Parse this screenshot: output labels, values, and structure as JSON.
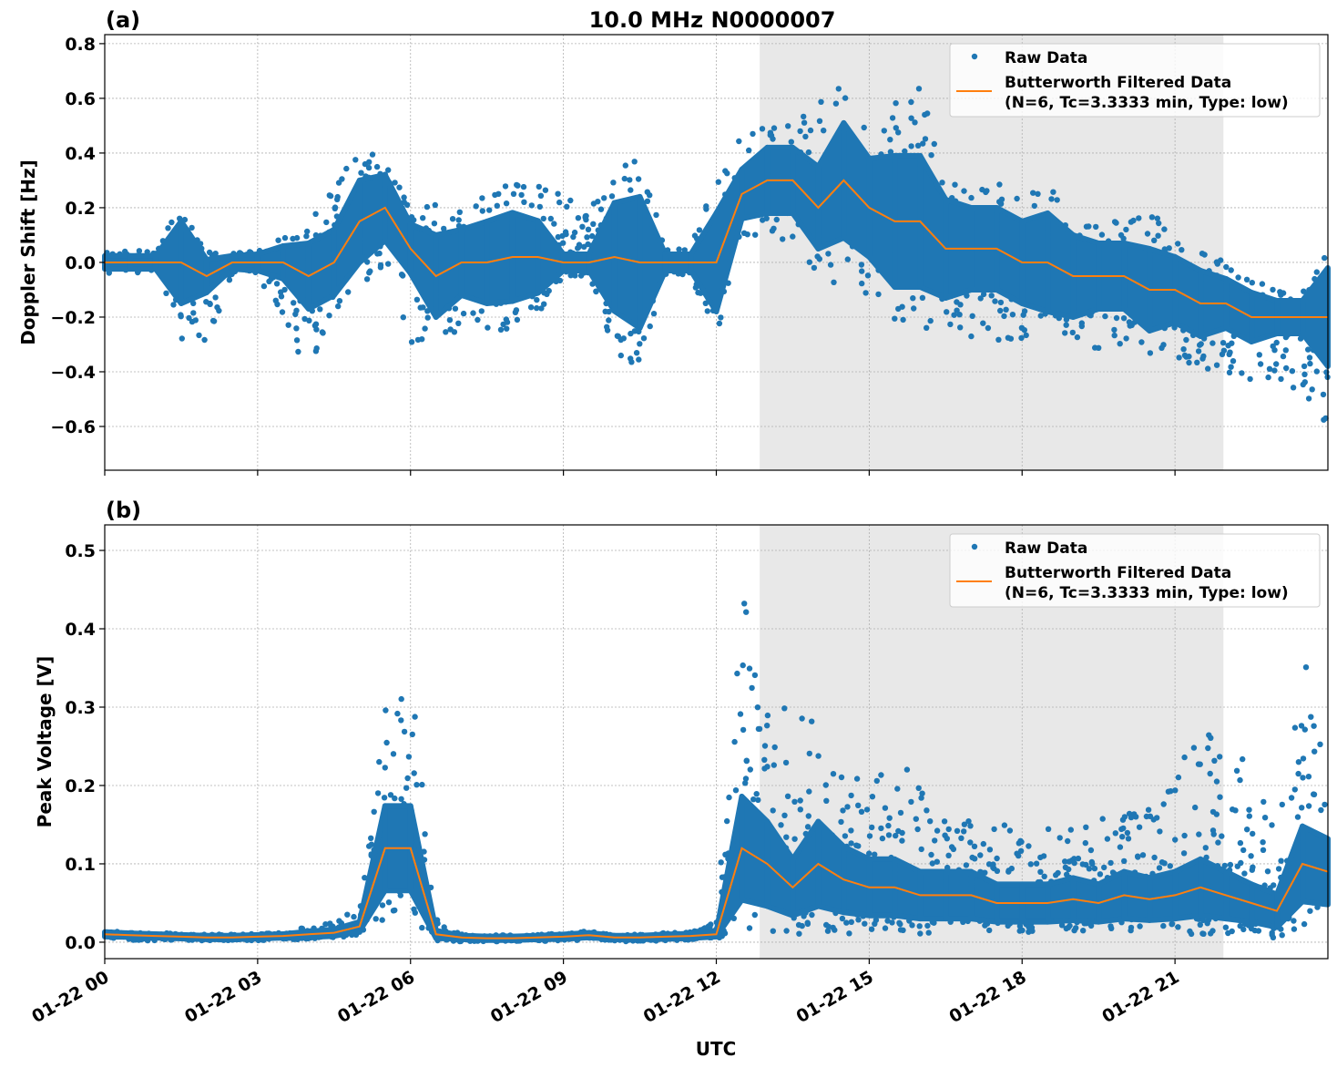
{
  "chart_data": [
    {
      "type": "scatter+line",
      "panel_label": "(a)",
      "title": "10.0 MHz N0000007",
      "xlabel": "",
      "ylabel": "Doppler Shift [Hz]",
      "xlim_hours": [
        0,
        24
      ],
      "ylim": [
        -0.76,
        0.833
      ],
      "yticks": [
        -0.6,
        -0.4,
        -0.2,
        0.0,
        0.2,
        0.4,
        0.6,
        0.8
      ],
      "ytick_labels": [
        "−0.6",
        "−0.4",
        "−0.2",
        "0.0",
        "0.2",
        "0.4",
        "0.6",
        "0.8"
      ],
      "shaded_region_hours": [
        12.85,
        21.95
      ],
      "grid": true,
      "legend": {
        "placement": "top-right",
        "entries": [
          "Raw Data",
          "Butterworth Filtered Data\n(N=6, Tc=3.3333 min, Type: low)"
        ],
        "line1": "Butterworth Filtered Data",
        "line2": "(N=6, Tc=3.3333 min, Type: low)"
      },
      "x_step_hours": 0.5,
      "filtered": [
        0,
        0,
        0,
        0,
        -0.05,
        0,
        0,
        0,
        -0.05,
        0,
        0.15,
        0.2,
        0.05,
        -0.05,
        0,
        0,
        0.02,
        0.02,
        0,
        0,
        0.02,
        0,
        0,
        0,
        0,
        0.25,
        0.3,
        0.3,
        0.2,
        0.3,
        0.2,
        0.15,
        0.15,
        0.05,
        0.05,
        0.05,
        0,
        0,
        -0.05,
        -0.05,
        -0.05,
        -0.1,
        -0.1,
        -0.15,
        -0.15,
        -0.2,
        -0.2,
        -0.2,
        -0.2
      ],
      "raw_low": [
        -0.05,
        -0.04,
        -0.04,
        -0.3,
        -0.3,
        -0.05,
        -0.05,
        -0.2,
        -0.45,
        -0.2,
        -0.1,
        -0.05,
        -0.3,
        -0.3,
        -0.25,
        -0.25,
        -0.25,
        -0.2,
        -0.05,
        -0.05,
        -0.35,
        -0.4,
        -0.05,
        -0.05,
        -0.3,
        0.1,
        0.1,
        0.0,
        -0.05,
        -0.1,
        -0.15,
        -0.25,
        -0.25,
        -0.25,
        -0.3,
        -0.3,
        -0.3,
        -0.3,
        -0.3,
        -0.35,
        -0.3,
        -0.35,
        -0.35,
        -0.4,
        -0.4,
        -0.45,
        -0.45,
        -0.5,
        -0.6
      ],
      "raw_high": [
        0.04,
        0.04,
        0.05,
        0.25,
        0.05,
        0.04,
        0.05,
        0.1,
        0.15,
        0.3,
        0.4,
        0.4,
        0.2,
        0.25,
        0.2,
        0.25,
        0.3,
        0.3,
        0.25,
        0.2,
        0.35,
        0.4,
        0.05,
        0.05,
        0.4,
        0.45,
        0.5,
        0.5,
        0.6,
        0.65,
        0.5,
        0.6,
        0.65,
        0.35,
        0.3,
        0.3,
        0.25,
        0.3,
        0.2,
        0.15,
        0.15,
        0.2,
        0.1,
        0.05,
        0.0,
        -0.05,
        -0.1,
        -0.1,
        0.1
      ]
    },
    {
      "type": "scatter+line",
      "panel_label": "(b)",
      "xlabel": "UTC",
      "ylabel": "Peak Voltage [V]",
      "xlim_hours": [
        0,
        24
      ],
      "ylim": [
        -0.021,
        0.5326
      ],
      "yticks": [
        0.0,
        0.1,
        0.2,
        0.3,
        0.4,
        0.5
      ],
      "ytick_labels": [
        "0.0",
        "0.1",
        "0.2",
        "0.3",
        "0.4",
        "0.5"
      ],
      "xticks_hours": [
        0,
        3,
        6,
        9,
        12,
        15,
        18,
        21
      ],
      "xtick_labels": [
        "01-22 00",
        "01-22 03",
        "01-22 06",
        "01-22 09",
        "01-22 12",
        "01-22 15",
        "01-22 18",
        "01-22 21"
      ],
      "shaded_region_hours": [
        12.85,
        21.95
      ],
      "grid": true,
      "legend": {
        "placement": "top-right",
        "entries": [
          "Raw Data",
          "Butterworth Filtered Data\n(N=6, Tc=3.3333 min, Type: low)"
        ],
        "line1": "Butterworth Filtered Data",
        "line2": "(N=6, Tc=3.3333 min, Type: low)"
      },
      "x_step_hours": 0.5,
      "filtered": [
        0.01,
        0.009,
        0.008,
        0.007,
        0.006,
        0.006,
        0.007,
        0.008,
        0.01,
        0.012,
        0.02,
        0.12,
        0.12,
        0.01,
        0.006,
        0.005,
        0.005,
        0.006,
        0.007,
        0.009,
        0.006,
        0.006,
        0.007,
        0.008,
        0.01,
        0.12,
        0.1,
        0.07,
        0.1,
        0.08,
        0.07,
        0.07,
        0.06,
        0.06,
        0.06,
        0.05,
        0.05,
        0.05,
        0.055,
        0.05,
        0.06,
        0.055,
        0.06,
        0.07,
        0.06,
        0.05,
        0.04,
        0.1,
        0.09
      ],
      "raw_low": [
        0.002,
        0.002,
        0.002,
        0.002,
        0.002,
        0.002,
        0.002,
        0.003,
        0.004,
        0.005,
        0.01,
        0.03,
        0.03,
        0.002,
        0.001,
        0.001,
        0.001,
        0.001,
        0.002,
        0.003,
        0.001,
        0.001,
        0.002,
        0.003,
        0.005,
        0.01,
        0.01,
        0.01,
        0.01,
        0.01,
        0.01,
        0.01,
        0.01,
        0.01,
        0.01,
        0.01,
        0.01,
        0.01,
        0.01,
        0.01,
        0.01,
        0.01,
        0.01,
        0.01,
        0.01,
        0.01,
        0.005,
        0.02,
        0.02
      ],
      "raw_high": [
        0.015,
        0.013,
        0.012,
        0.011,
        0.01,
        0.01,
        0.011,
        0.012,
        0.02,
        0.025,
        0.05,
        0.3,
        0.35,
        0.03,
        0.01,
        0.009,
        0.009,
        0.01,
        0.012,
        0.014,
        0.01,
        0.01,
        0.012,
        0.014,
        0.03,
        0.45,
        0.35,
        0.3,
        0.3,
        0.22,
        0.2,
        0.25,
        0.2,
        0.16,
        0.16,
        0.15,
        0.15,
        0.15,
        0.15,
        0.16,
        0.16,
        0.18,
        0.2,
        0.3,
        0.22,
        0.25,
        0.15,
        0.38,
        0.2
      ]
    }
  ]
}
